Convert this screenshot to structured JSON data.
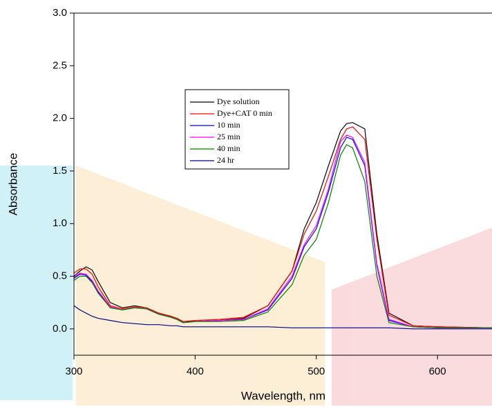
{
  "chart_data": {
    "type": "line",
    "x_label": "Wavelength, nm",
    "y_label": "Absorbance",
    "x": [
      300,
      305,
      310,
      315,
      320,
      330,
      340,
      350,
      360,
      370,
      380,
      385,
      390,
      400,
      420,
      440,
      460,
      480,
      490,
      500,
      510,
      520,
      525,
      530,
      540,
      550,
      560,
      580,
      600,
      645
    ],
    "series": [
      {
        "name": "Dye solution",
        "color": "#000000",
        "values": [
          0.5,
          0.55,
          0.59,
          0.56,
          0.45,
          0.25,
          0.2,
          0.22,
          0.2,
          0.15,
          0.12,
          0.1,
          0.07,
          0.07,
          0.08,
          0.1,
          0.22,
          0.55,
          0.95,
          1.2,
          1.55,
          1.88,
          1.95,
          1.96,
          1.9,
          0.9,
          0.15,
          0.03,
          0.02,
          0.01
        ]
      },
      {
        "name": "Dye+CAT 0 min",
        "color": "#ff0000",
        "values": [
          0.53,
          0.57,
          0.57,
          0.52,
          0.4,
          0.22,
          0.19,
          0.21,
          0.2,
          0.15,
          0.12,
          0.1,
          0.07,
          0.08,
          0.09,
          0.11,
          0.22,
          0.55,
          0.9,
          1.12,
          1.45,
          1.8,
          1.9,
          1.92,
          1.8,
          0.85,
          0.13,
          0.03,
          0.02,
          0.01
        ]
      },
      {
        "name": "10 min",
        "color": "#0000ff",
        "values": [
          0.48,
          0.52,
          0.51,
          0.45,
          0.35,
          0.21,
          0.18,
          0.2,
          0.19,
          0.14,
          0.11,
          0.09,
          0.06,
          0.07,
          0.08,
          0.09,
          0.18,
          0.48,
          0.78,
          0.95,
          1.3,
          1.72,
          1.82,
          1.8,
          1.55,
          0.6,
          0.08,
          0.02,
          0.01,
          0.01
        ]
      },
      {
        "name": "25 min",
        "color": "#ff00ff",
        "values": [
          0.49,
          0.53,
          0.52,
          0.46,
          0.36,
          0.21,
          0.18,
          0.2,
          0.19,
          0.14,
          0.11,
          0.09,
          0.06,
          0.07,
          0.08,
          0.09,
          0.19,
          0.5,
          0.8,
          0.98,
          1.33,
          1.78,
          1.84,
          1.82,
          1.58,
          0.62,
          0.09,
          0.02,
          0.01,
          0.01
        ]
      },
      {
        "name": "40 min",
        "color": "#008000",
        "values": [
          0.46,
          0.5,
          0.5,
          0.44,
          0.34,
          0.2,
          0.18,
          0.2,
          0.19,
          0.14,
          0.11,
          0.09,
          0.06,
          0.07,
          0.07,
          0.08,
          0.16,
          0.42,
          0.7,
          0.85,
          1.2,
          1.65,
          1.75,
          1.72,
          1.4,
          0.5,
          0.06,
          0.02,
          0.01,
          0.01
        ]
      },
      {
        "name": "24 hr",
        "color": "#000080",
        "values": [
          0.22,
          0.18,
          0.15,
          0.12,
          0.1,
          0.08,
          0.06,
          0.05,
          0.04,
          0.04,
          0.03,
          0.03,
          0.02,
          0.02,
          0.02,
          0.02,
          0.02,
          0.01,
          0.01,
          0.01,
          0.01,
          0.01,
          0.01,
          0.01,
          0.01,
          0.01,
          0.01,
          0.0,
          0.0,
          0.0
        ]
      }
    ],
    "xlim": [
      300,
      645
    ],
    "ylim": [
      -0.25,
      3.0
    ],
    "xticks": [
      300,
      400,
      500,
      600
    ],
    "yticks": [
      {
        "value": 0,
        "label": "0.0"
      },
      0.5,
      {
        "value": 1,
        "label": "1.0"
      },
      1.5,
      {
        "value": 2,
        "label": "2.0"
      },
      2.5,
      {
        "value": 3,
        "label": "3.0"
      }
    ]
  }
}
